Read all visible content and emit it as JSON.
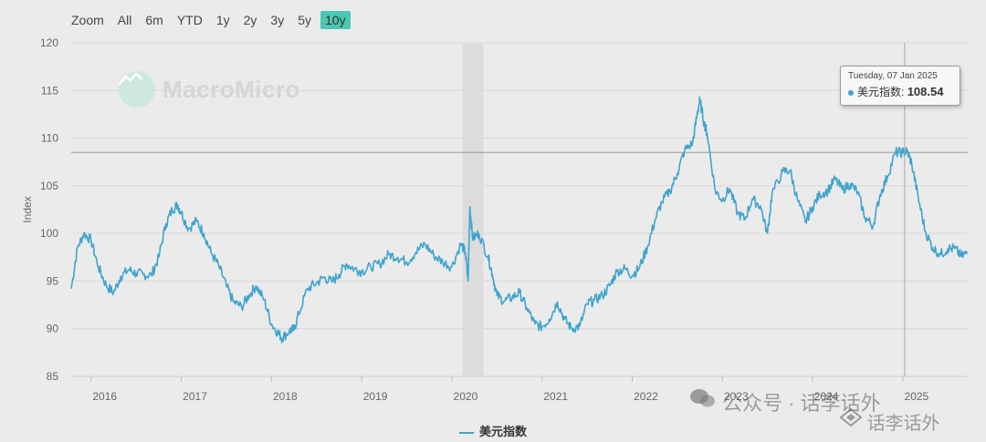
{
  "zoom": {
    "label": "Zoom",
    "buttons": [
      "All",
      "6m",
      "YTD",
      "1y",
      "2y",
      "3y",
      "5y",
      "10y"
    ],
    "active": "10y"
  },
  "brand": {
    "logo_text": "MacroMicro"
  },
  "tooltip": {
    "date": "Tuesday, 07 Jan 2025",
    "series": "美元指数",
    "value": "108.54"
  },
  "legend": {
    "label": "美元指数"
  },
  "watermark": {
    "text1": "公众号 · 话李话外",
    "text2": "话李话外"
  },
  "colors": {
    "line": "#3ea4cc",
    "recession": "#dcdcdc",
    "background": "#ebebeb",
    "active_button": "#4cc7b3"
  },
  "chart_data": {
    "type": "line",
    "title": "",
    "ylabel": "Index",
    "xlabel": "",
    "ylim": [
      85,
      120
    ],
    "yticks": [
      85,
      90,
      95,
      100,
      105,
      110,
      115,
      120
    ],
    "xlim": [
      2015.78,
      2025.72
    ],
    "xticks": [
      {
        "v": 2016,
        "label": "2016"
      },
      {
        "v": 2017,
        "label": "2017"
      },
      {
        "v": 2018,
        "label": "2018"
      },
      {
        "v": 2019,
        "label": "2019"
      },
      {
        "v": 2020,
        "label": "2020"
      },
      {
        "v": 2021,
        "label": "2021"
      },
      {
        "v": 2022,
        "label": "2022"
      },
      {
        "v": 2023,
        "label": "2023"
      },
      {
        "v": 2024,
        "label": "2024"
      },
      {
        "v": 2025,
        "label": "2025"
      }
    ],
    "recession_band": [
      2020.12,
      2020.35
    ],
    "reference_line": 108.5,
    "crosshair_x": 2025.02,
    "series": [
      {
        "name": "美元指数",
        "x": [
          2015.78,
          2015.85,
          2015.92,
          2016.0,
          2016.08,
          2016.17,
          2016.25,
          2016.33,
          2016.42,
          2016.5,
          2016.58,
          2016.67,
          2016.75,
          2016.83,
          2016.9,
          2016.96,
          2017.0,
          2017.08,
          2017.17,
          2017.25,
          2017.33,
          2017.42,
          2017.5,
          2017.58,
          2017.67,
          2017.75,
          2017.83,
          2017.92,
          2018.0,
          2018.08,
          2018.12,
          2018.2,
          2018.25,
          2018.3,
          2018.4,
          2018.5,
          2018.58,
          2018.67,
          2018.75,
          2018.83,
          2018.92,
          2019.0,
          2019.1,
          2019.2,
          2019.3,
          2019.4,
          2019.5,
          2019.6,
          2019.7,
          2019.8,
          2019.9,
          2020.0,
          2020.1,
          2020.15,
          2020.18,
          2020.2,
          2020.23,
          2020.3,
          2020.4,
          2020.45,
          2020.5,
          2020.58,
          2020.67,
          2020.75,
          2020.83,
          2020.92,
          2021.0,
          2021.08,
          2021.17,
          2021.25,
          2021.33,
          2021.42,
          2021.5,
          2021.58,
          2021.67,
          2021.75,
          2021.83,
          2021.92,
          2022.0,
          2022.08,
          2022.17,
          2022.25,
          2022.33,
          2022.42,
          2022.5,
          2022.58,
          2022.67,
          2022.72,
          2022.75,
          2022.8,
          2022.83,
          2022.92,
          2023.0,
          2023.08,
          2023.17,
          2023.25,
          2023.33,
          2023.42,
          2023.5,
          2023.55,
          2023.67,
          2023.75,
          2023.83,
          2023.92,
          2024.0,
          2024.08,
          2024.17,
          2024.25,
          2024.33,
          2024.42,
          2024.5,
          2024.58,
          2024.67,
          2024.75,
          2024.83,
          2024.92,
          2025.0,
          2025.05,
          2025.1,
          2025.17,
          2025.25,
          2025.33,
          2025.42,
          2025.5,
          2025.58,
          2025.65,
          2025.72
        ],
        "values": [
          94.2,
          98.5,
          100.0,
          99.3,
          96.5,
          94.5,
          93.8,
          95.5,
          96.2,
          95.8,
          95.7,
          95.6,
          97.5,
          101.0,
          102.5,
          103.0,
          102.2,
          100.5,
          101.3,
          100.0,
          98.0,
          96.5,
          94.5,
          92.8,
          92.3,
          93.5,
          94.5,
          93.0,
          90.5,
          89.5,
          89.0,
          89.8,
          89.9,
          91.5,
          94.2,
          94.8,
          95.4,
          94.9,
          95.7,
          96.8,
          96.3,
          96.0,
          96.5,
          96.8,
          97.8,
          97.5,
          97.0,
          98.0,
          98.9,
          97.7,
          97.0,
          96.5,
          98.9,
          98.0,
          95.0,
          102.8,
          99.5,
          100.0,
          97.6,
          95.7,
          93.5,
          92.9,
          93.3,
          93.8,
          92.2,
          90.5,
          90.2,
          91.0,
          92.8,
          91.0,
          90.0,
          90.3,
          92.6,
          93.0,
          93.5,
          94.5,
          96.0,
          96.3,
          95.6,
          96.4,
          98.6,
          101.3,
          103.3,
          104.5,
          106.3,
          108.7,
          109.5,
          112.5,
          114.0,
          111.5,
          110.5,
          104.5,
          103.5,
          104.7,
          102.1,
          101.5,
          103.6,
          102.9,
          100.0,
          104.2,
          106.5,
          106.6,
          103.6,
          101.2,
          102.8,
          104.1,
          104.5,
          105.7,
          104.6,
          105.2,
          104.3,
          101.7,
          100.8,
          104.1,
          106.0,
          108.5,
          108.5,
          108.6,
          107.3,
          103.8,
          100.2,
          98.5,
          97.8,
          98.4,
          98.4,
          97.6,
          98.0
        ]
      }
    ]
  }
}
